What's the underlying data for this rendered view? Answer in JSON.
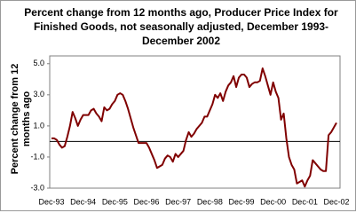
{
  "chart_data": {
    "type": "line",
    "title": "Percent change from 12 months ago, Producer Price Index for Finished Goods, not seasonally adjusted, December 1993-December 2002",
    "y_label": "Percent change from 12 months ago",
    "categories": [
      "Dec-93",
      null,
      null,
      null,
      null,
      null,
      null,
      null,
      null,
      null,
      null,
      null,
      "Dec-94",
      null,
      null,
      null,
      null,
      null,
      null,
      null,
      null,
      null,
      null,
      null,
      "Dec-95",
      null,
      null,
      null,
      null,
      null,
      null,
      null,
      null,
      null,
      null,
      null,
      "Dec-96",
      null,
      null,
      null,
      null,
      null,
      null,
      null,
      null,
      null,
      null,
      null,
      "Dec-97",
      null,
      null,
      null,
      null,
      null,
      null,
      null,
      null,
      null,
      null,
      null,
      "Dec-98",
      null,
      null,
      null,
      null,
      null,
      null,
      null,
      null,
      null,
      null,
      null,
      "Dec-99",
      null,
      null,
      null,
      null,
      null,
      null,
      null,
      null,
      null,
      null,
      null,
      "Dec-00",
      null,
      null,
      null,
      null,
      null,
      null,
      null,
      null,
      null,
      null,
      null,
      "Dec-01",
      null,
      null,
      null,
      null,
      null,
      null,
      null,
      null,
      null,
      null,
      null,
      "Dec-02"
    ],
    "values": [
      0.2,
      0.2,
      0.1,
      -0.2,
      -0.4,
      -0.3,
      0.3,
      1.0,
      1.9,
      1.5,
      1.0,
      1.4,
      1.7,
      1.7,
      1.7,
      2.0,
      2.1,
      1.8,
      1.6,
      1.3,
      2.2,
      2.0,
      2.1,
      2.4,
      2.6,
      3.0,
      3.1,
      3.0,
      2.6,
      2.1,
      1.5,
      0.9,
      0.4,
      -0.1,
      -0.1,
      -0.1,
      -0.1,
      -0.4,
      -0.8,
      -1.2,
      -1.7,
      -1.6,
      -1.5,
      -1.1,
      -0.9,
      -1.0,
      -1.3,
      -0.8,
      -1.0,
      -0.8,
      -0.6,
      0.1,
      0.6,
      0.3,
      0.5,
      0.8,
      1.0,
      1.2,
      1.6,
      1.6,
      2.0,
      2.4,
      3.0,
      2.8,
      3.1,
      2.6,
      3.2,
      3.6,
      3.8,
      4.2,
      3.5,
      4.1,
      4.3,
      4.3,
      4.1,
      3.5,
      3.7,
      3.8,
      3.8,
      3.9,
      4.7,
      4.2,
      3.6,
      3.0,
      3.8,
      3.2,
      2.8,
      1.4,
      1.8,
      0.2,
      -1.0,
      -1.5,
      -1.8,
      -2.7,
      -2.6,
      -2.5,
      -2.9,
      -2.5,
      -2.2,
      -1.2,
      -1.4,
      -1.6,
      -1.8,
      -1.9,
      -1.9,
      0.4,
      0.6,
      0.9,
      1.2
    ],
    "color": "#800000",
    "ylim": [
      -3,
      5.5
    ],
    "yticks": [
      {
        "value": -3,
        "label": "-3.0"
      },
      {
        "value": -1,
        "label": "-1.0"
      },
      {
        "value": 1,
        "label": "1.0"
      },
      {
        "value": 3,
        "label": "3.0"
      },
      {
        "value": 5,
        "label": "5.0"
      }
    ]
  }
}
